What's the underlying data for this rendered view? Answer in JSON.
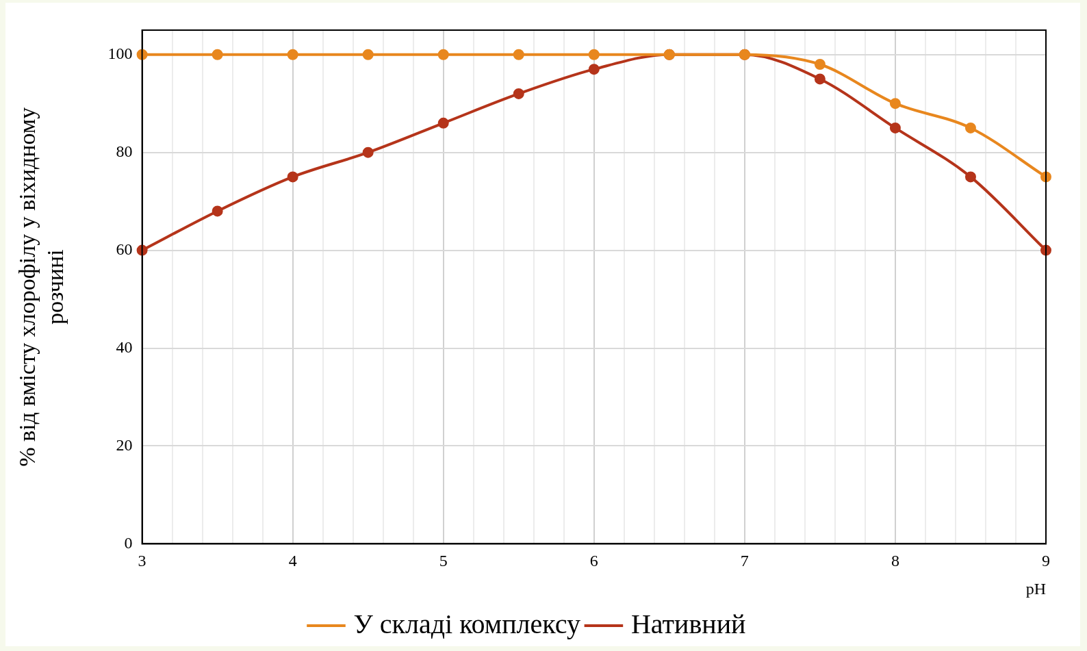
{
  "chart_data": {
    "type": "line",
    "xlabel": "pH",
    "ylabel": "% від вмісту хлорофілу у віхидному розчині",
    "x": [
      3,
      3.5,
      4,
      4.5,
      5,
      5.5,
      6,
      6.5,
      7,
      7.5,
      8,
      8.5,
      9
    ],
    "series": [
      {
        "name": "Нативний",
        "color": "#b5341a",
        "values": [
          60,
          68,
          75,
          80,
          86,
          92,
          97,
          100,
          100,
          95,
          85,
          75,
          60
        ]
      },
      {
        "name": "У складі комплексу",
        "color": "#e8871e",
        "values": [
          100,
          100,
          100,
          100,
          100,
          100,
          100,
          100,
          100,
          98,
          90,
          85,
          75
        ]
      }
    ],
    "xlim": [
      3,
      9
    ],
    "xticks": [
      3,
      {
        "value": 3.2,
        "label": null
      },
      {
        "value": 3.4,
        "label": null
      },
      {
        "value": 3.6,
        "label": null
      },
      {
        "value": 3.8,
        "label": null
      },
      4,
      {
        "value": 4.2,
        "label": null
      },
      {
        "value": 4.4,
        "label": null
      },
      {
        "value": 4.6,
        "label": null
      },
      {
        "value": 4.8,
        "label": null
      },
      5,
      {
        "value": 5.2,
        "label": null
      },
      {
        "value": 5.4,
        "label": null
      },
      {
        "value": 5.6,
        "label": null
      },
      {
        "value": 5.8,
        "label": null
      },
      6,
      {
        "value": 6.2,
        "label": null
      },
      {
        "value": 6.4,
        "label": null
      },
      {
        "value": 6.6,
        "label": null
      },
      {
        "value": 6.8,
        "label": null
      },
      7,
      {
        "value": 7.2,
        "label": null
      },
      {
        "value": 7.4,
        "label": null
      },
      {
        "value": 7.6,
        "label": null
      },
      {
        "value": 7.8,
        "label": null
      },
      8,
      {
        "value": 8.2,
        "label": null
      },
      {
        "value": 8.4,
        "label": null
      },
      {
        "value": 8.6,
        "label": null
      },
      {
        "value": 8.8,
        "label": null
      },
      9
    ],
    "ylim": [
      0,
      105
    ],
    "yticks": [
      0,
      20,
      40,
      60,
      80,
      100
    ],
    "grid": true,
    "legend": "bottom",
    "marker": "circle",
    "line_style": "solid"
  }
}
